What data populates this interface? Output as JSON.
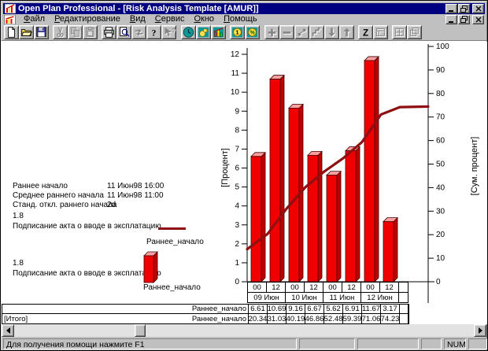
{
  "window": {
    "title": "Open Plan Professional - [Risk Analysis Template [AMUR]]"
  },
  "colors": {
    "titlebar": "#000080",
    "bar_front": "#f00000",
    "bar_top": "#ffa0a0",
    "bar_side": "#c00000",
    "cumulative_line": "#8e1012",
    "chrome": "#c0c0c0"
  },
  "menu": {
    "items": [
      {
        "key": "file",
        "label": "Файл"
      },
      {
        "key": "edit",
        "label": "Редактирование"
      },
      {
        "key": "view",
        "label": "Вид"
      },
      {
        "key": "tools",
        "label": "Сервис"
      },
      {
        "key": "window",
        "label": "Окно"
      },
      {
        "key": "help",
        "label": "Помощь"
      }
    ]
  },
  "toolbar": {
    "groups": [
      [
        {
          "name": "new-document",
          "enabled": true
        },
        {
          "name": "open",
          "enabled": true
        },
        {
          "name": "save",
          "enabled": true
        }
      ],
      [
        {
          "name": "cut",
          "enabled": false
        },
        {
          "name": "copy",
          "enabled": false
        },
        {
          "name": "paste",
          "enabled": false
        }
      ],
      [
        {
          "name": "print",
          "enabled": true
        },
        {
          "name": "print-preview",
          "enabled": true
        },
        {
          "name": "import-export",
          "enabled": false
        },
        {
          "name": "help",
          "enabled": true
        },
        {
          "name": "context-help",
          "enabled": false
        }
      ],
      [
        {
          "name": "time-clock",
          "enabled": true
        },
        {
          "name": "duck",
          "enabled": true
        },
        {
          "name": "histogram",
          "enabled": true
        }
      ],
      [
        {
          "name": "cost",
          "enabled": true
        },
        {
          "name": "percent-complete",
          "enabled": true
        }
      ],
      [
        {
          "name": "add",
          "enabled": false
        },
        {
          "name": "remove",
          "enabled": false
        },
        {
          "name": "link",
          "enabled": false
        },
        {
          "name": "outline",
          "enabled": false
        },
        {
          "name": "move-down",
          "enabled": false
        },
        {
          "name": "move-up",
          "enabled": false
        }
      ],
      [
        {
          "name": "sort",
          "enabled": true
        },
        {
          "name": "filter",
          "enabled": false
        }
      ],
      [
        {
          "name": "tile",
          "enabled": false
        },
        {
          "name": "cascade",
          "enabled": false
        }
      ]
    ],
    "glyphs": {
      "help": "?",
      "context_help": "?",
      "sort": "Z",
      "coin": "1",
      "percent": "%"
    }
  },
  "info_panel": {
    "rows": [
      {
        "label": "Раннее начало",
        "value": "11 Июн98 16:00"
      },
      {
        "label": "Среднее раннего начала",
        "value": "11 Июн98 11:00"
      },
      {
        "label": "Станд. откл.  раннего начала",
        "value": "2d"
      }
    ]
  },
  "legend": {
    "line_entry": {
      "id": "1.8",
      "activity": "Подписание акта о вводе в эксплатацию",
      "series": "Раннее_начало"
    },
    "bar_entry": {
      "id": "1.8",
      "activity": "Подписание акта о вводе в эксплатацию",
      "series": "Раннее_начало"
    }
  },
  "chart_data": {
    "type": "bar",
    "title": "",
    "x_hour_labels": [
      "00",
      "12",
      "00",
      "12",
      "00",
      "12",
      "00",
      "12"
    ],
    "x_date_labels": [
      "09 Июн",
      "10 Июн",
      "11 Июн",
      "12 Июн"
    ],
    "left_axis": {
      "label": "[Процент]",
      "min": 0,
      "max": 12,
      "step": 1
    },
    "right_axis": {
      "label": "[Сум. процент]",
      "min": 0,
      "max": 100,
      "step": 10
    },
    "grid": false,
    "series": [
      {
        "name": "Раннее_начало",
        "type": "bar",
        "axis": "left",
        "color": "#f00000",
        "values": [
          6.61,
          10.69,
          9.16,
          6.67,
          5.62,
          6.91,
          11.67,
          3.17
        ]
      },
      {
        "name": "Раннее_начало (Итого)",
        "type": "line",
        "axis": "right",
        "color": "#8e1012",
        "values": [
          20.34,
          31.03,
          40.19,
          46.86,
          52.48,
          59.39,
          71.06,
          74.23
        ]
      }
    ]
  },
  "table": {
    "rows": [
      {
        "left_label": "",
        "series": "Раннее_начало",
        "values": [
          "6.61",
          "10.69",
          "9.16",
          "6.67",
          "5.62",
          "6.91",
          "11.67",
          "3.17"
        ]
      },
      {
        "left_label": "[Итого]",
        "series": "Раннее_начало",
        "values": [
          "20.34",
          "31.03",
          "40.19",
          "46.86",
          "52.48",
          "59.39",
          "71.06",
          "74.23"
        ]
      }
    ]
  },
  "status_bar": {
    "message": "Для получения помощи нажмите F1",
    "num_indicator": "NUM"
  }
}
